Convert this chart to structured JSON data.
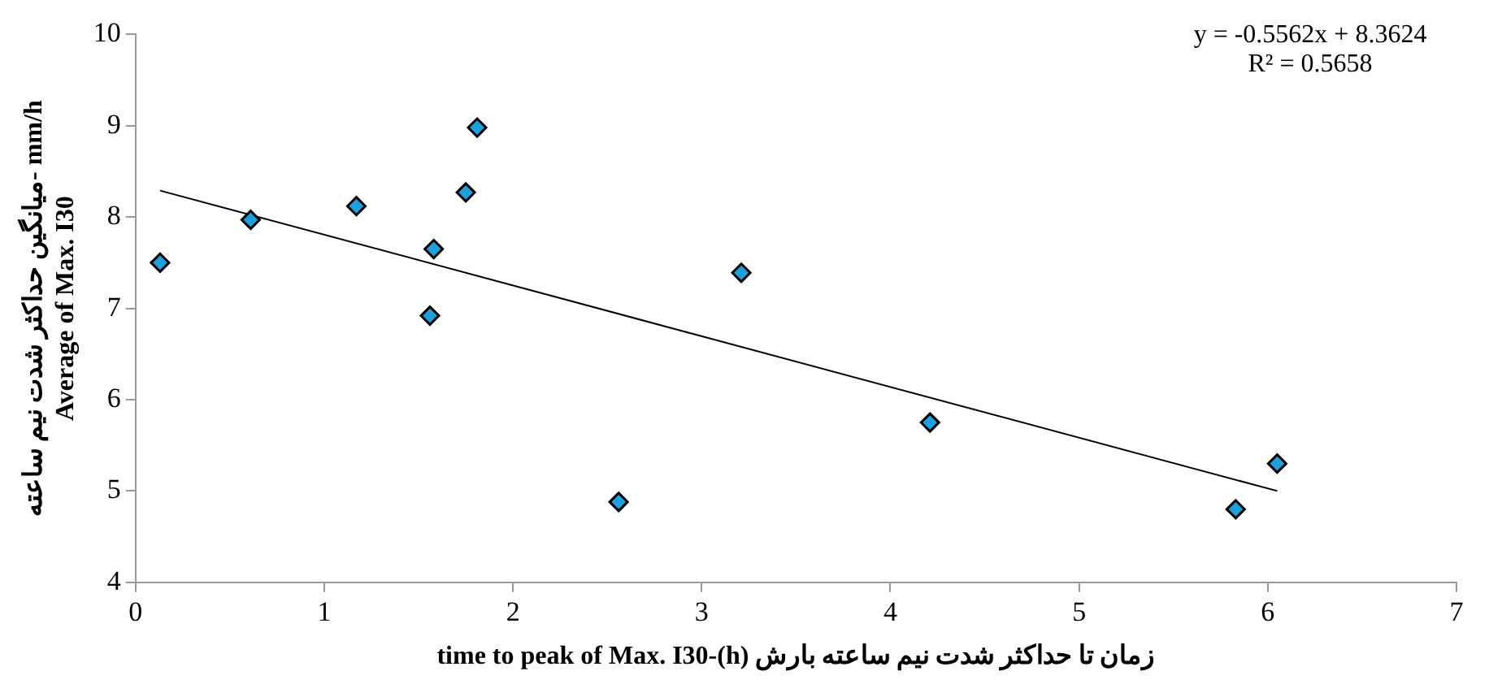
{
  "chart_data": {
    "type": "scatter",
    "xlabel": "time to peak of Max. I30-(h) زمان تا حداکثر شدت نیم ساعته بارش",
    "ylabel": "میانگین حداکثر شدت نیم ساعته- mm/h\nAverage of Max. I30",
    "annotations": [
      "y = -0.5562x + 8.3624",
      "R² = 0.5658"
    ],
    "xlim": [
      0,
      7
    ],
    "xticks": [
      0,
      1,
      2,
      3,
      4,
      5,
      6,
      7
    ],
    "ylim": [
      4,
      10
    ],
    "yticks": [
      4,
      5,
      6,
      7,
      8,
      9,
      10
    ],
    "grid": false,
    "legend": false,
    "marker": "diamond",
    "series": [
      {
        "type": "scatter",
        "color": "#1ea0dc",
        "x": [
          0.13,
          0.61,
          1.17,
          1.56,
          1.58,
          1.75,
          1.81,
          2.56,
          3.21,
          4.21,
          5.83,
          6.05
        ],
        "values": [
          7.5,
          7.97,
          8.12,
          6.92,
          7.65,
          8.27,
          8.98,
          4.88,
          7.39,
          5.75,
          4.8,
          5.3
        ]
      },
      {
        "type": "line",
        "color": "#000000",
        "marker": "none",
        "x": [
          0.13,
          6.05
        ],
        "values": [
          8.29,
          5.0
        ]
      }
    ]
  }
}
